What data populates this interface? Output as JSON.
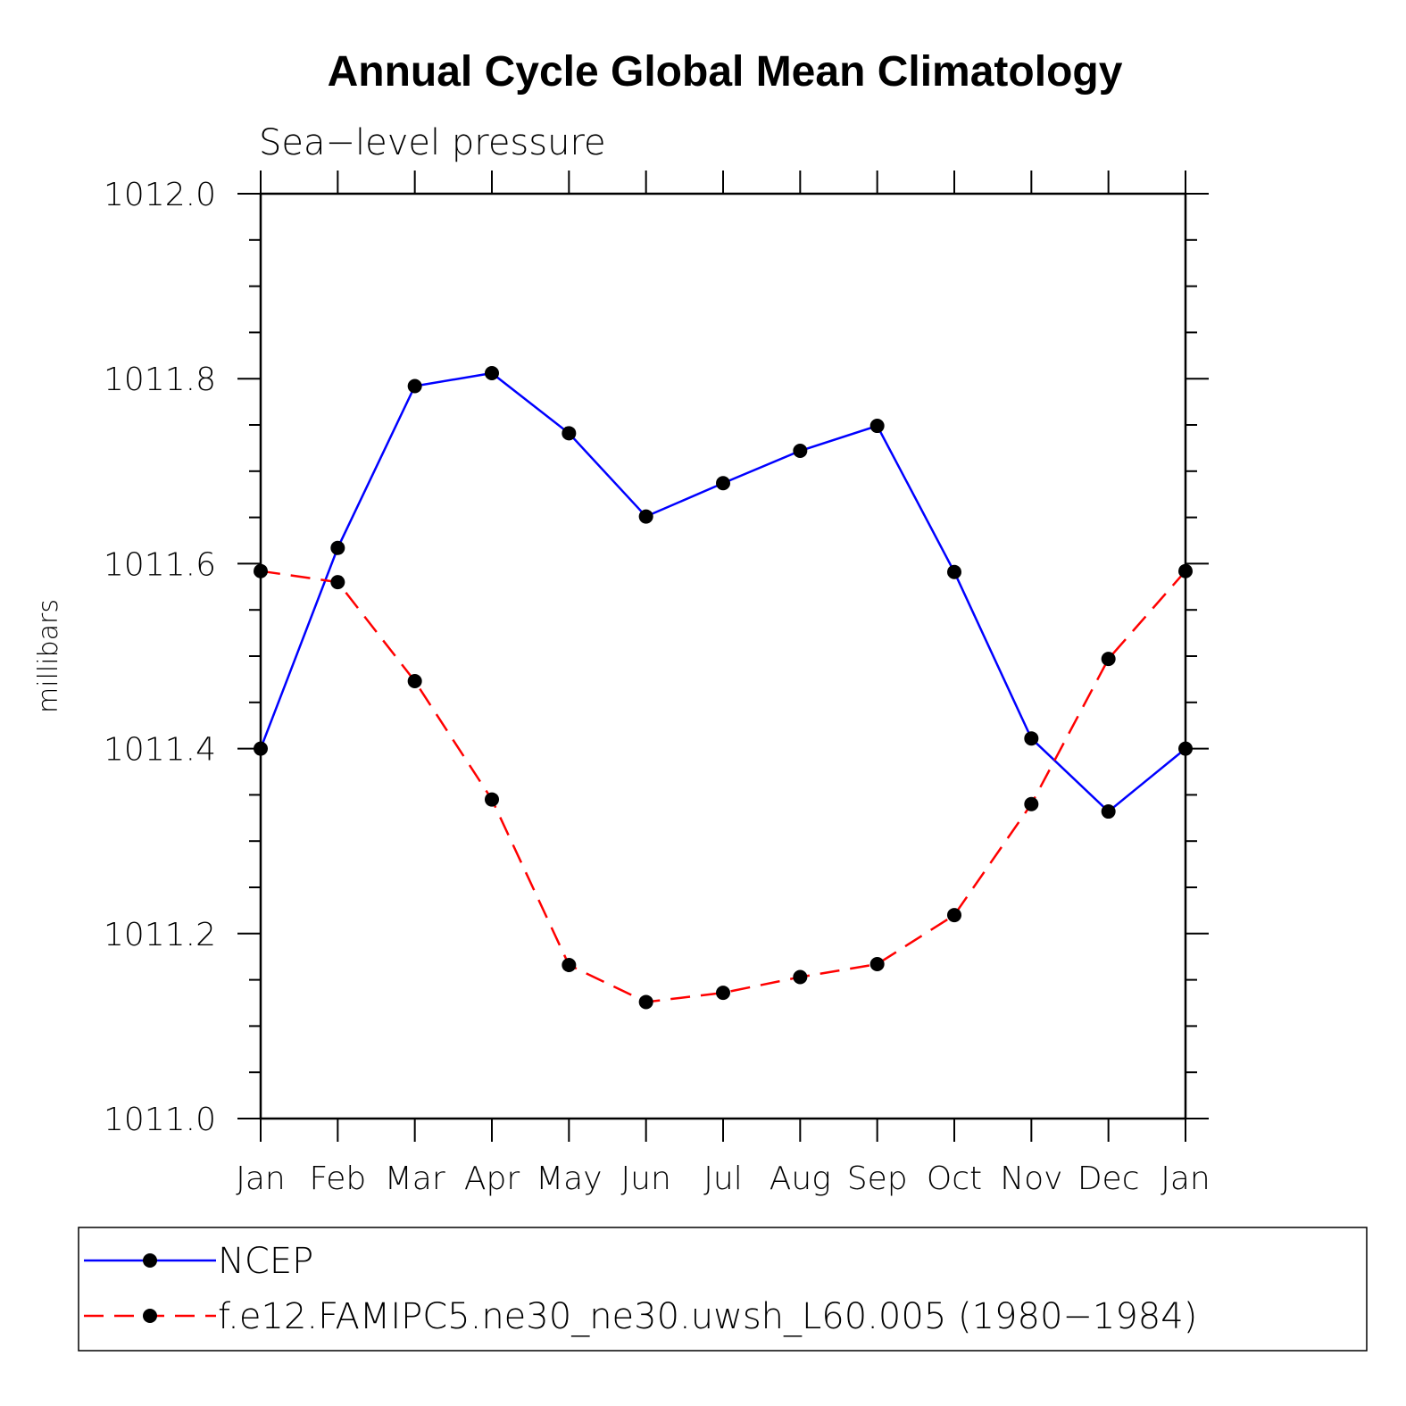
{
  "chart_data": {
    "type": "line",
    "title": "Annual Cycle Global Mean Climatology",
    "subtitle": "Sea−level pressure",
    "xlabel": "",
    "ylabel": "millibars",
    "categories": [
      "Jan",
      "Feb",
      "Mar",
      "Apr",
      "May",
      "Jun",
      "Jul",
      "Aug",
      "Sep",
      "Oct",
      "Nov",
      "Dec",
      "Jan"
    ],
    "ylim": [
      1011.0,
      1012.0
    ],
    "yticks": [
      "1011.0",
      "1011.2",
      "1011.4",
      "1011.6",
      "1011.8",
      "1012.0"
    ],
    "series": [
      {
        "name": "NCEP",
        "color": "#0000ff",
        "style": "solid",
        "values": [
          1011.4,
          1011.617,
          1011.792,
          1011.806,
          1011.741,
          1011.651,
          1011.687,
          1011.722,
          1011.749,
          1011.591,
          1011.411,
          1011.332,
          1011.4
        ]
      },
      {
        "name": "f.e12.FAMIPC5.ne30_ne30.uwsh_L60.005 (1980−1984)",
        "color": "#ff0000",
        "style": "dashed",
        "values": [
          1011.592,
          1011.58,
          1011.473,
          1011.345,
          1011.166,
          1011.126,
          1011.136,
          1011.153,
          1011.167,
          1011.22,
          1011.34,
          1011.497,
          1011.592
        ]
      }
    ],
    "legend_position": "bottom",
    "grid": false
  }
}
